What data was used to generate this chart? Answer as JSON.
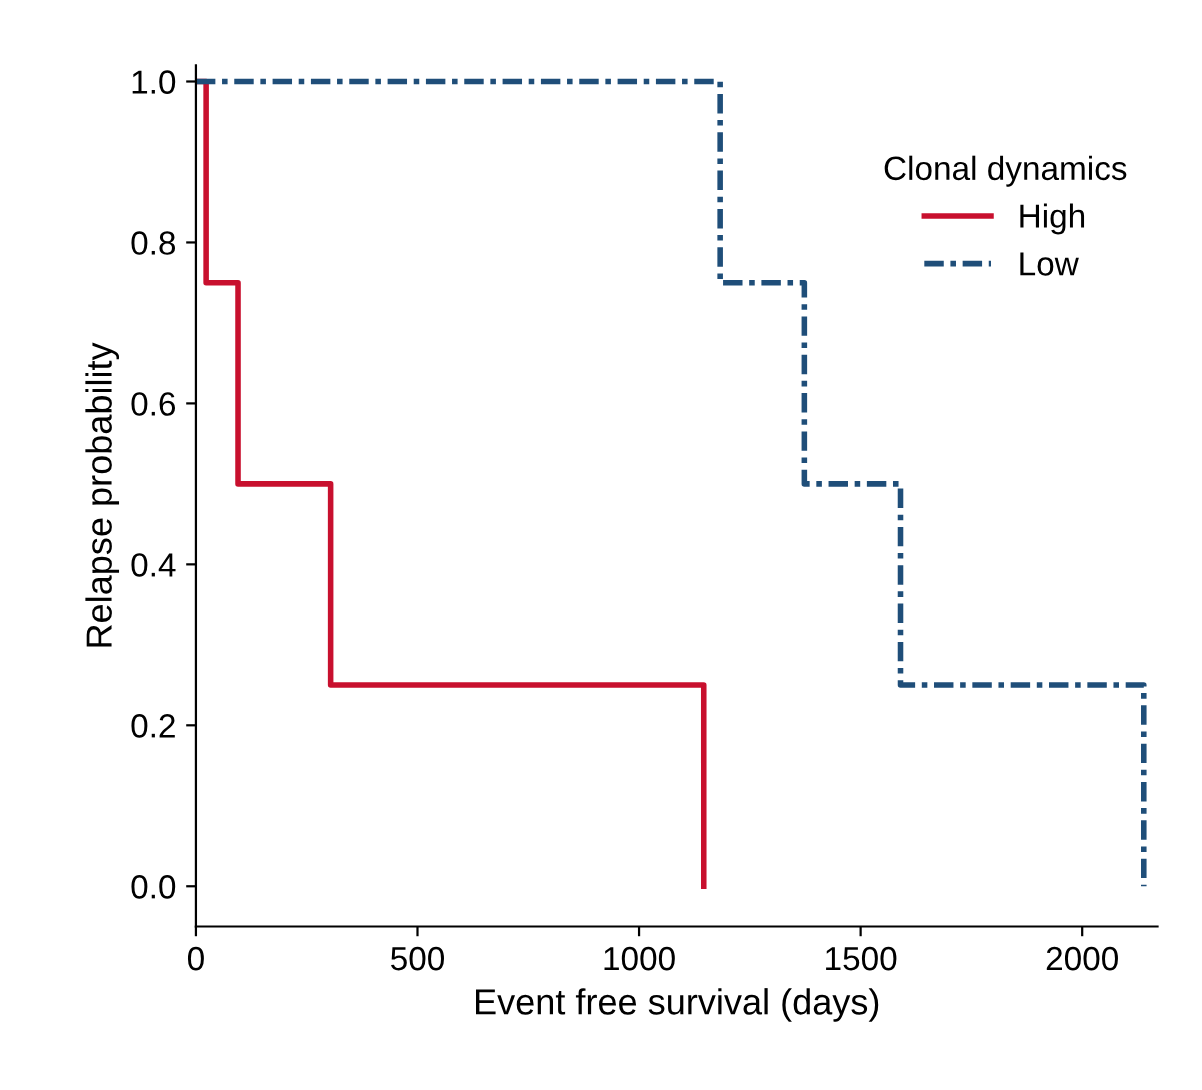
{
  "chart_data": {
    "type": "step",
    "xlabel": "Event free survival (days)",
    "ylabel": "Relapse probability",
    "legend_title": "Clonal dynamics",
    "legend": "top right",
    "grid": false,
    "xlim": [
      0,
      2170
    ],
    "ylim": [
      -0.05,
      1.02
    ],
    "xticks": [
      0,
      500,
      1000,
      1500,
      2000
    ],
    "yticks": [
      {
        "value": 0,
        "label": "0.0"
      },
      {
        "value": 0.2,
        "label": "0.2"
      },
      {
        "value": 0.4,
        "label": "0.4"
      },
      {
        "value": 0.6,
        "label": "0.6"
      },
      {
        "value": 0.8,
        "label": "0.8"
      },
      {
        "value": 1,
        "label": "1.0"
      }
    ],
    "series": [
      {
        "name": "High",
        "color": "#c8102e",
        "line_style": "solid",
        "x": [
          0,
          23,
          95,
          304,
          1146
        ],
        "values": [
          1,
          0.75,
          0.5,
          0.25,
          0
        ]
      },
      {
        "name": "Low",
        "color": "#1f4e79",
        "line_style": "dashdot",
        "x": [
          0,
          1183,
          1373,
          1590,
          2139
        ],
        "values": [
          1,
          0.75,
          0.5,
          0.25,
          0
        ]
      }
    ]
  }
}
